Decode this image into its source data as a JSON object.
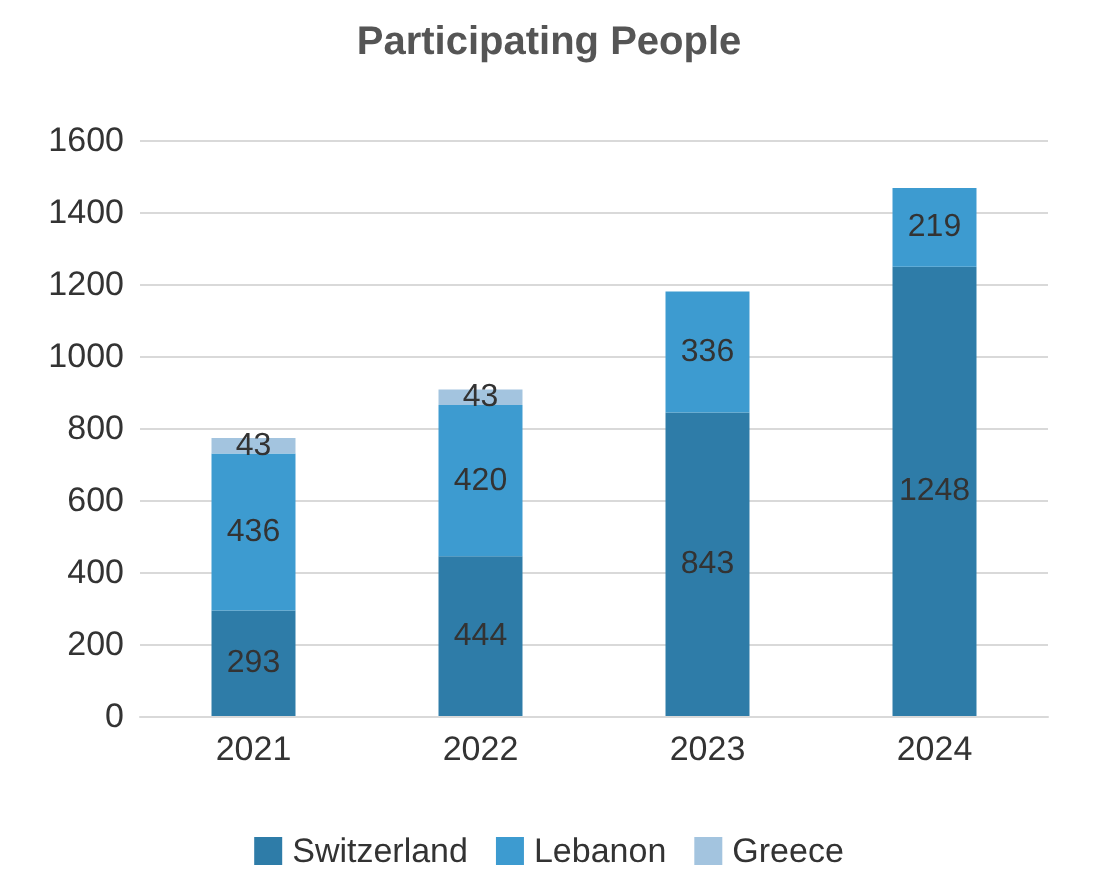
{
  "chart_data": {
    "type": "bar",
    "title": "Participating People",
    "categories": [
      "2021",
      "2022",
      "2023",
      "2024"
    ],
    "stacked": true,
    "series": [
      {
        "name": "Switzerland",
        "color": "#2e7ca8",
        "values": [
          293,
          444,
          843,
          1248
        ]
      },
      {
        "name": "Lebanon",
        "color": "#3d9bd0",
        "values": [
          436,
          420,
          336,
          219
        ]
      },
      {
        "name": "Greece",
        "color": "#a3c4df",
        "values": [
          43,
          43,
          null,
          null
        ]
      }
    ],
    "ylim": [
      0,
      1600
    ],
    "yticks": [
      0,
      200,
      400,
      600,
      800,
      1000,
      1200,
      1400,
      1600
    ],
    "grid": "y",
    "legend": "bottom",
    "data_labels": true
  }
}
